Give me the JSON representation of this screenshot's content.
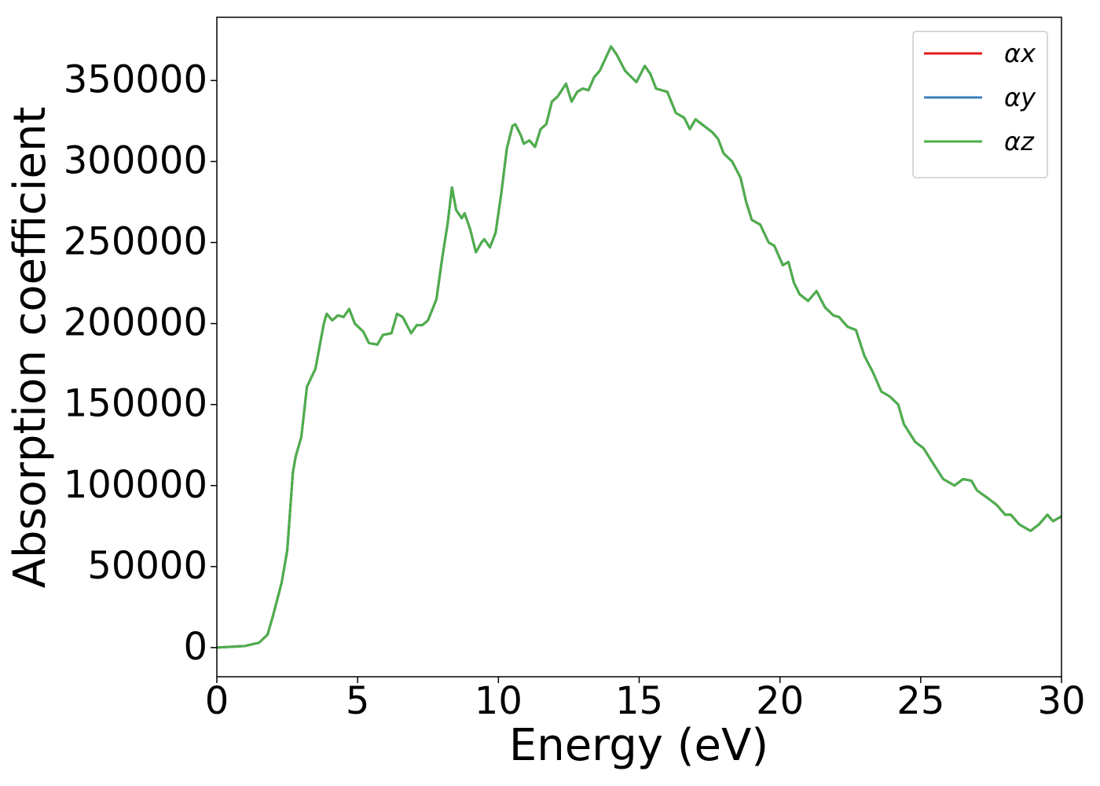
{
  "chart_data": {
    "type": "line",
    "xlabel": "Energy (eV)",
    "ylabel": "Absorption coefficient",
    "x": [
      0,
      1,
      1.5,
      1.8,
      2.0,
      2.3,
      2.5,
      2.7,
      2.8,
      3.0,
      3.2,
      3.5,
      3.8,
      3.9,
      4.1,
      4.3,
      4.5,
      4.7,
      4.9,
      5.2,
      5.4,
      5.7,
      5.9,
      6.2,
      6.4,
      6.6,
      6.9,
      7.1,
      7.3,
      7.5,
      7.8,
      8.0,
      8.2,
      8.35,
      8.5,
      8.7,
      8.8,
      9.0,
      9.2,
      9.4,
      9.5,
      9.7,
      9.9,
      10.1,
      10.3,
      10.5,
      10.6,
      10.8,
      10.9,
      11.1,
      11.3,
      11.5,
      11.7,
      11.9,
      12.1,
      12.4,
      12.6,
      12.8,
      13.0,
      13.2,
      13.4,
      13.6,
      14.0,
      14.2,
      14.5,
      14.9,
      15.2,
      15.4,
      15.6,
      15.8,
      16.0,
      16.3,
      16.6,
      16.8,
      17.0,
      17.3,
      17.6,
      17.8,
      18.0,
      18.3,
      18.6,
      18.8,
      19.0,
      19.3,
      19.6,
      19.8,
      20.1,
      20.3,
      20.5,
      20.7,
      21.0,
      21.3,
      21.6,
      21.9,
      22.1,
      22.4,
      22.7,
      23.0,
      23.3,
      23.6,
      23.9,
      24.2,
      24.4,
      24.8,
      25.1,
      25.5,
      25.8,
      26.2,
      26.5,
      26.8,
      27.0,
      27.4,
      27.7,
      28.0,
      28.2,
      28.5,
      28.9,
      29.2,
      29.5,
      29.7,
      30.0
    ],
    "series": [
      {
        "name": "αx",
        "color": "#e41a1c",
        "values": [
          0,
          1000,
          3000,
          8000,
          20000,
          40000,
          60000,
          108000,
          118000,
          130000,
          161000,
          172000,
          200000,
          206000,
          202000,
          205000,
          204000,
          209000,
          200000,
          195000,
          188000,
          187000,
          193000,
          194000,
          206000,
          204000,
          194000,
          199000,
          199000,
          202000,
          215000,
          240000,
          262000,
          284000,
          270000,
          265000,
          268000,
          258000,
          244000,
          250000,
          252000,
          247000,
          256000,
          280000,
          308000,
          322000,
          323000,
          316000,
          311000,
          313000,
          309000,
          320000,
          323000,
          337000,
          340000,
          348000,
          337000,
          343000,
          345000,
          344000,
          352000,
          356000,
          371000,
          366000,
          356000,
          349000,
          359000,
          354000,
          345000,
          344000,
          343000,
          330000,
          327000,
          320000,
          326000,
          322000,
          318000,
          314000,
          305000,
          300000,
          290000,
          275000,
          264000,
          261000,
          250000,
          248000,
          236000,
          238000,
          225000,
          218000,
          214000,
          220000,
          210000,
          205000,
          204000,
          198000,
          196000,
          180000,
          170000,
          158000,
          155000,
          150000,
          138000,
          127000,
          123000,
          112000,
          104000,
          100000,
          104000,
          103000,
          97000,
          92000,
          88000,
          82000,
          82000,
          76000,
          72000,
          76000,
          82000,
          78000,
          81000
        ]
      },
      {
        "name": "αy",
        "color": "#377eb8",
        "values": [
          0,
          1000,
          3000,
          8000,
          20000,
          40000,
          60000,
          108000,
          118000,
          130000,
          161000,
          172000,
          200000,
          206000,
          202000,
          205000,
          204000,
          209000,
          200000,
          195000,
          188000,
          187000,
          193000,
          194000,
          206000,
          204000,
          194000,
          199000,
          199000,
          202000,
          215000,
          240000,
          262000,
          284000,
          270000,
          265000,
          268000,
          258000,
          244000,
          250000,
          252000,
          247000,
          256000,
          280000,
          308000,
          322000,
          323000,
          316000,
          311000,
          313000,
          309000,
          320000,
          323000,
          337000,
          340000,
          348000,
          337000,
          343000,
          345000,
          344000,
          352000,
          356000,
          371000,
          366000,
          356000,
          349000,
          359000,
          354000,
          345000,
          344000,
          343000,
          330000,
          327000,
          320000,
          326000,
          322000,
          318000,
          314000,
          305000,
          300000,
          290000,
          275000,
          264000,
          261000,
          250000,
          248000,
          236000,
          238000,
          225000,
          218000,
          214000,
          220000,
          210000,
          205000,
          204000,
          198000,
          196000,
          180000,
          170000,
          158000,
          155000,
          150000,
          138000,
          127000,
          123000,
          112000,
          104000,
          100000,
          104000,
          103000,
          97000,
          92000,
          88000,
          82000,
          82000,
          76000,
          72000,
          76000,
          82000,
          78000,
          81000
        ]
      },
      {
        "name": "αz",
        "color": "#4daf4a",
        "values": [
          0,
          1000,
          3000,
          8000,
          20000,
          40000,
          60000,
          108000,
          118000,
          130000,
          161000,
          172000,
          200000,
          206000,
          202000,
          205000,
          204000,
          209000,
          200000,
          195000,
          188000,
          187000,
          193000,
          194000,
          206000,
          204000,
          194000,
          199000,
          199000,
          202000,
          215000,
          240000,
          262000,
          284000,
          270000,
          265000,
          268000,
          258000,
          244000,
          250000,
          252000,
          247000,
          256000,
          280000,
          308000,
          322000,
          323000,
          316000,
          311000,
          313000,
          309000,
          320000,
          323000,
          337000,
          340000,
          348000,
          337000,
          343000,
          345000,
          344000,
          352000,
          356000,
          371000,
          366000,
          356000,
          349000,
          359000,
          354000,
          345000,
          344000,
          343000,
          330000,
          327000,
          320000,
          326000,
          322000,
          318000,
          314000,
          305000,
          300000,
          290000,
          275000,
          264000,
          261000,
          250000,
          248000,
          236000,
          238000,
          225000,
          218000,
          214000,
          220000,
          210000,
          205000,
          204000,
          198000,
          196000,
          180000,
          170000,
          158000,
          155000,
          150000,
          138000,
          127000,
          123000,
          112000,
          104000,
          100000,
          104000,
          103000,
          97000,
          92000,
          88000,
          82000,
          82000,
          76000,
          72000,
          76000,
          82000,
          78000,
          81000
        ]
      }
    ],
    "xlim": [
      0,
      30
    ],
    "xticks": [
      0,
      5,
      10,
      15,
      20,
      25,
      30
    ],
    "ylim": [
      -18000,
      389000
    ],
    "yticks": [
      0,
      50000,
      100000,
      150000,
      200000,
      250000,
      300000,
      350000
    ],
    "grid": false,
    "legend": "upper right"
  }
}
